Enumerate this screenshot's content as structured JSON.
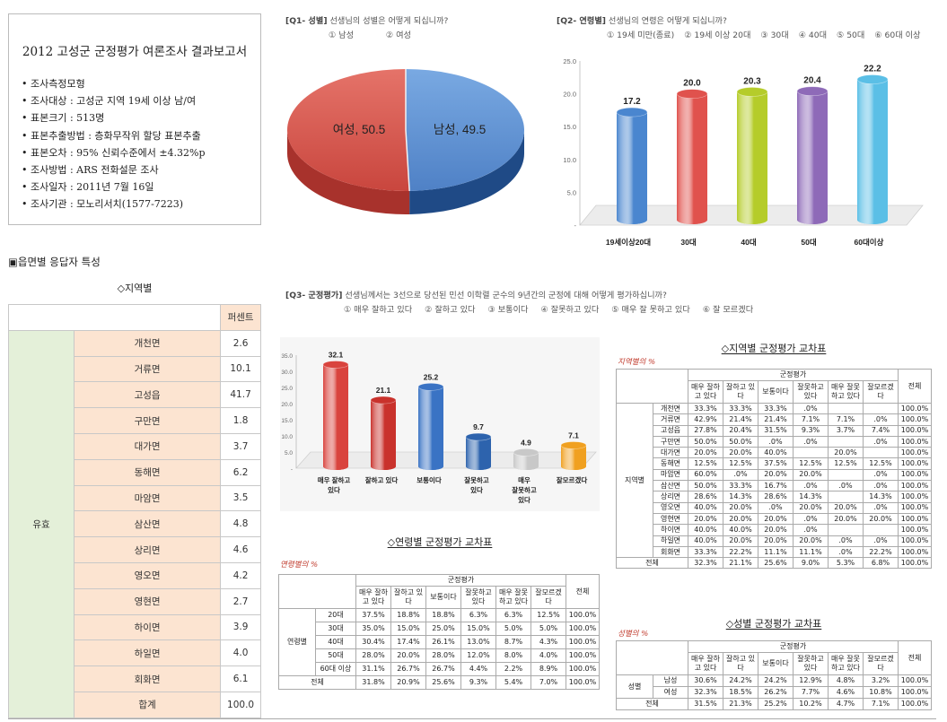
{
  "summary": {
    "title": "2012 고성군 군정평가 여론조사 결과보고서",
    "items": [
      "조사측정모형",
      "조사대상 : 고성군 지역 19세 이상 남/여",
      "표본크기 : 513명",
      "표본추출방법 : 층화무작위 할당 표본추출",
      "표본오차 : 95% 신뢰수준에서 ±4.32%p",
      "조사방법 : ARS 전화설문 조사",
      "조사일자 : 2011년 7월 16일",
      "조사기관 : 모노리서치(1577-7223)"
    ]
  },
  "section_title": "▣읍면별 응답자 특성",
  "region_section": {
    "caption": "◇지역별",
    "header": "퍼센트",
    "group_label": "유효",
    "rows": [
      {
        "name": "개천면",
        "value": "2.6"
      },
      {
        "name": "거류면",
        "value": "10.1"
      },
      {
        "name": "고성읍",
        "value": "41.7"
      },
      {
        "name": "구만면",
        "value": "1.8"
      },
      {
        "name": "대가면",
        "value": "3.7"
      },
      {
        "name": "동해면",
        "value": "6.2"
      },
      {
        "name": "마암면",
        "value": "3.5"
      },
      {
        "name": "삼산면",
        "value": "4.8"
      },
      {
        "name": "상리면",
        "value": "4.6"
      },
      {
        "name": "영오면",
        "value": "4.2"
      },
      {
        "name": "영현면",
        "value": "2.7"
      },
      {
        "name": "하이면",
        "value": "3.9"
      },
      {
        "name": "하일면",
        "value": "4.0"
      },
      {
        "name": "회화면",
        "value": "6.1"
      }
    ],
    "total_label": "합계",
    "total_value": "100.0"
  },
  "q1": {
    "tag": "[Q1- 성별]",
    "question": "선생님의 성별은 어떻게 되십니까?",
    "options": [
      "① 남성",
      "② 여성"
    ]
  },
  "q2": {
    "tag": "[Q2- 연령별]",
    "question": "선생님의 연령은 어떻게 되십니까?",
    "options": [
      "① 19세 미만(종료)",
      "② 19세 이상 20대",
      "③ 30대",
      "④ 40대",
      "⑤ 50대",
      "⑥ 60대 이상"
    ]
  },
  "q3": {
    "tag": "[Q3- 군정평가]",
    "question": "선생님께서는 3선으로 당선된 민선 이학렬 군수의 9년간의 군정에 대해 어떻게 평가하십니까?",
    "options": [
      "① 매우 잘하고 있다",
      "② 잘하고 있다",
      "③ 보통이다",
      "④ 잘못하고 있다",
      "⑤ 매우 잘 못하고 있다",
      "⑥ 잘 모르겠다"
    ]
  },
  "chart_data": [
    {
      "type": "pie",
      "labels": [
        "여성",
        "남성"
      ],
      "values": [
        50.5,
        49.5
      ],
      "data_labels": [
        "여성, 50.5",
        "남성, 49.5"
      ],
      "colors": [
        "#d9534f",
        "#5b8fd0"
      ]
    },
    {
      "type": "bar",
      "categories": [
        "19세이상20대",
        "30대",
        "40대",
        "50대",
        "60대이상"
      ],
      "values": [
        17.2,
        20.0,
        20.3,
        20.4,
        22.2
      ],
      "value_labels": [
        "17.2",
        "20.0",
        "20.3",
        "20.4",
        "22.2"
      ],
      "yticks": [
        "25.0",
        "20.0",
        "15.0",
        "10.0",
        "5.0",
        "-"
      ],
      "ylim": [
        0,
        25
      ],
      "colors": [
        "#4a86cf",
        "#e0524d",
        "#b5cc2a",
        "#8e6ab8",
        "#5bbfe6"
      ]
    },
    {
      "type": "bar",
      "categories": [
        "매우 잘하고 있다",
        "잘하고 있다",
        "보통이다",
        "잘못하고 있다",
        "매우 잘못하고 있다",
        "잘모르겠다"
      ],
      "values": [
        32.1,
        21.1,
        25.2,
        9.7,
        4.9,
        7.1
      ],
      "value_labels": [
        "32.1",
        "21.1",
        "25.2",
        "9.7",
        "4.9",
        "7.1"
      ],
      "yticks": [
        "35.0",
        "30.0",
        "25.0",
        "20.0",
        "15.0",
        "10.0",
        "5.0",
        "-"
      ],
      "ylim": [
        0,
        35
      ],
      "colors": [
        "#d9443e",
        "#c9322c",
        "#3a73c4",
        "#2d63ad",
        "#c8c8c8",
        "#f0a020"
      ]
    }
  ],
  "age_cross": {
    "caption": "◇연령별 군정평가 교차표",
    "note": "연령별의 %",
    "header_group": "군정평가",
    "cols": [
      "매우 잘하고 있다",
      "잘하고 있다",
      "보통이다",
      "잘못하고 있다",
      "매우 잘못하고 있다",
      "잘모르겠다",
      "전체"
    ],
    "group_label": "연령별",
    "rows": [
      {
        "label": "20대",
        "cells": [
          "37.5%",
          "18.8%",
          "18.8%",
          "6.3%",
          "6.3%",
          "12.5%",
          "100.0%"
        ]
      },
      {
        "label": "30대",
        "cells": [
          "35.0%",
          "15.0%",
          "25.0%",
          "15.0%",
          "5.0%",
          "5.0%",
          "100.0%"
        ]
      },
      {
        "label": "40대",
        "cells": [
          "30.4%",
          "17.4%",
          "26.1%",
          "13.0%",
          "8.7%",
          "4.3%",
          "100.0%"
        ]
      },
      {
        "label": "50대",
        "cells": [
          "28.0%",
          "20.0%",
          "28.0%",
          "12.0%",
          "8.0%",
          "4.0%",
          "100.0%"
        ]
      },
      {
        "label": "60대 이상",
        "cells": [
          "31.1%",
          "26.7%",
          "26.7%",
          "4.4%",
          "2.2%",
          "8.9%",
          "100.0%"
        ]
      }
    ],
    "total_label": "전체",
    "total_cells": [
      "31.8%",
      "20.9%",
      "25.6%",
      "9.3%",
      "5.4%",
      "7.0%",
      "100.0%"
    ]
  },
  "region_cross": {
    "caption": "◇지역별 군정평가 교차표",
    "note": "지역별의 %",
    "header_group": "군정평가",
    "cols": [
      "매우 잘하고 있다",
      "잘하고 있다",
      "보통이다",
      "잘못하고 있다",
      "매우 잘못하고 있다",
      "잘모르겠다",
      "전체"
    ],
    "group_label": "지역별",
    "rows": [
      {
        "label": "개천면",
        "cells": [
          "33.3%",
          "33.3%",
          "33.3%",
          ".0%",
          "",
          "",
          "100.0%"
        ]
      },
      {
        "label": "거류면",
        "cells": [
          "42.9%",
          "21.4%",
          "21.4%",
          "7.1%",
          "7.1%",
          ".0%",
          "100.0%"
        ]
      },
      {
        "label": "고성읍",
        "cells": [
          "27.8%",
          "20.4%",
          "31.5%",
          "9.3%",
          "3.7%",
          "7.4%",
          "100.0%"
        ]
      },
      {
        "label": "구만면",
        "cells": [
          "50.0%",
          "50.0%",
          ".0%",
          ".0%",
          "",
          ".0%",
          "100.0%"
        ]
      },
      {
        "label": "대가면",
        "cells": [
          "20.0%",
          "20.0%",
          "40.0%",
          "",
          "20.0%",
          "",
          "100.0%"
        ]
      },
      {
        "label": "동해면",
        "cells": [
          "12.5%",
          "12.5%",
          "37.5%",
          "12.5%",
          "12.5%",
          "12.5%",
          "100.0%"
        ]
      },
      {
        "label": "마암면",
        "cells": [
          "60.0%",
          ".0%",
          "20.0%",
          "20.0%",
          "",
          ".0%",
          "100.0%"
        ]
      },
      {
        "label": "삼산면",
        "cells": [
          "50.0%",
          "33.3%",
          "16.7%",
          ".0%",
          ".0%",
          ".0%",
          "100.0%"
        ]
      },
      {
        "label": "상리면",
        "cells": [
          "28.6%",
          "14.3%",
          "28.6%",
          "14.3%",
          "",
          "14.3%",
          "100.0%"
        ]
      },
      {
        "label": "영오면",
        "cells": [
          "40.0%",
          "20.0%",
          ".0%",
          "20.0%",
          "20.0%",
          ".0%",
          "100.0%"
        ]
      },
      {
        "label": "영현면",
        "cells": [
          "20.0%",
          "20.0%",
          "20.0%",
          ".0%",
          "20.0%",
          "20.0%",
          "100.0%"
        ]
      },
      {
        "label": "하이면",
        "cells": [
          "40.0%",
          "40.0%",
          "20.0%",
          ".0%",
          "",
          "",
          "100.0%"
        ]
      },
      {
        "label": "하일면",
        "cells": [
          "40.0%",
          "20.0%",
          "20.0%",
          "20.0%",
          ".0%",
          ".0%",
          "100.0%"
        ]
      },
      {
        "label": "회화면",
        "cells": [
          "33.3%",
          "22.2%",
          "11.1%",
          "11.1%",
          ".0%",
          "22.2%",
          "100.0%"
        ]
      }
    ],
    "total_label": "전체",
    "total_cells": [
      "32.3%",
      "21.1%",
      "25.6%",
      "9.0%",
      "5.3%",
      "6.8%",
      "100.0%"
    ]
  },
  "gender_cross": {
    "caption": "◇성별 군정평가 교차표",
    "note": "성별의 %",
    "header_group": "군정평가",
    "cols": [
      "매우 잘하고 있다",
      "잘하고 있다",
      "보통이다",
      "잘못하고 있다",
      "매우 잘못하고 있다",
      "잘모르겠다",
      "전체"
    ],
    "group_label": "성별",
    "rows": [
      {
        "label": "남성",
        "cells": [
          "30.6%",
          "24.2%",
          "24.2%",
          "12.9%",
          "4.8%",
          "3.2%",
          "100.0%"
        ]
      },
      {
        "label": "여성",
        "cells": [
          "32.3%",
          "18.5%",
          "26.2%",
          "7.7%",
          "4.6%",
          "10.8%",
          "100.0%"
        ]
      }
    ],
    "total_label": "전체",
    "total_cells": [
      "31.5%",
      "21.3%",
      "25.2%",
      "10.2%",
      "4.7%",
      "7.1%",
      "100.0%"
    ]
  }
}
